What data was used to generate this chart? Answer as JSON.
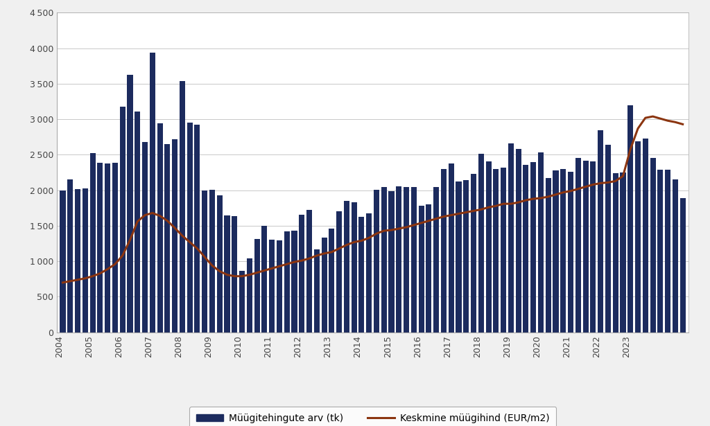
{
  "bar_values": [
    2000,
    2150,
    2020,
    2030,
    2520,
    2390,
    2380,
    2390,
    3180,
    3630,
    3110,
    2680,
    3940,
    2940,
    2650,
    2720,
    3540,
    2950,
    2920,
    2000,
    2010,
    1930,
    1650,
    1640,
    870,
    1040,
    1310,
    1500,
    1300,
    1290,
    1420,
    1430,
    1660,
    1720,
    1170,
    1330,
    1460,
    1700,
    1850,
    1830,
    1630,
    1680,
    2010,
    2050,
    1990,
    2060,
    2050,
    2050,
    1780,
    1800,
    2050,
    2300,
    2380,
    2120,
    2140,
    2230,
    2510,
    2410,
    2300,
    2320,
    2660,
    2580,
    2360,
    2400,
    2530,
    2170,
    2280,
    2300,
    2260,
    2460,
    2420,
    2410,
    2850,
    2640,
    2240,
    2250,
    3200,
    2690,
    2730,
    2460,
    2290,
    2290,
    2150,
    1890
  ],
  "line_values": [
    700,
    720,
    740,
    760,
    790,
    830,
    890,
    960,
    1080,
    1300,
    1560,
    1650,
    1680,
    1640,
    1570,
    1470,
    1360,
    1270,
    1180,
    1060,
    940,
    860,
    810,
    790,
    790,
    810,
    840,
    870,
    900,
    930,
    960,
    990,
    1010,
    1040,
    1080,
    1110,
    1130,
    1180,
    1230,
    1270,
    1290,
    1330,
    1390,
    1430,
    1440,
    1460,
    1480,
    1510,
    1540,
    1570,
    1600,
    1630,
    1650,
    1670,
    1690,
    1710,
    1730,
    1760,
    1780,
    1810,
    1810,
    1830,
    1860,
    1880,
    1890,
    1910,
    1940,
    1970,
    1990,
    2020,
    2050,
    2080,
    2100,
    2110,
    2130,
    2200,
    2580,
    2870,
    3020,
    3040,
    3010,
    2980,
    2960,
    2930
  ],
  "x_labels": [
    "2004",
    "2005",
    "2006",
    "2007",
    "2008",
    "2009",
    "2010",
    "2011",
    "2012",
    "2013",
    "2014",
    "2015",
    "2016",
    "2017",
    "2018",
    "2019",
    "2020",
    "2021",
    "2022",
    "2023"
  ],
  "bar_color": "#1c2b5e",
  "line_color": "#8b3510",
  "background_color": "#f0f0f0",
  "plot_bg_color": "#ffffff",
  "ylim": [
    0,
    4500
  ],
  "yticks": [
    0,
    500,
    1000,
    1500,
    2000,
    2500,
    3000,
    3500,
    4000,
    4500
  ],
  "legend_bar_label": "Müügitehingute arv (tk)",
  "legend_line_label": "Keskmine müügihind (EUR/m2)",
  "grid_color": "#c8c8c8"
}
